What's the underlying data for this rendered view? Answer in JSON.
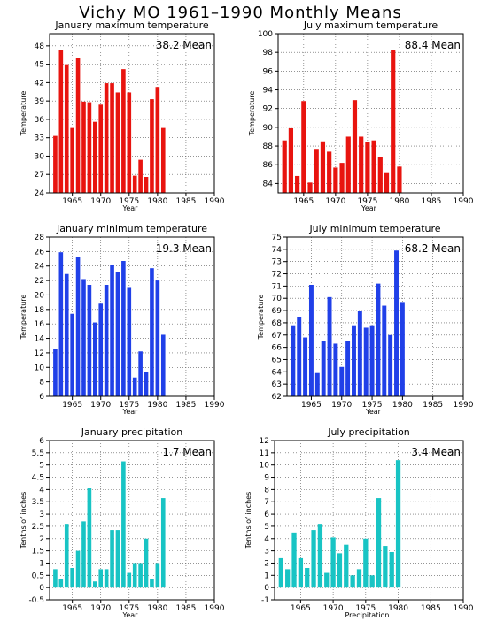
{
  "page_title": "Vichy MO  1961–1990 Monthly Means",
  "chart_data": [
    {
      "id": "jan-max",
      "type": "bar",
      "title": "January maximum temperature",
      "xlabel": "Year",
      "ylabel": "Temperature",
      "mean_label": "38.2 Mean",
      "bar_color": "#e8140f",
      "xlim": [
        1961,
        1990
      ],
      "ylim": [
        24,
        50
      ],
      "xticks": [
        1965,
        1970,
        1975,
        1980,
        1985,
        1990
      ],
      "yticks": [
        24,
        27,
        30,
        33,
        36,
        39,
        42,
        45,
        48
      ],
      "x": [
        1962,
        1963,
        1964,
        1965,
        1966,
        1967,
        1968,
        1969,
        1970,
        1971,
        1972,
        1973,
        1974,
        1975,
        1976,
        1977,
        1978,
        1979,
        1980,
        1981
      ],
      "values": [
        33.3,
        47.4,
        45.0,
        34.6,
        46.1,
        38.9,
        38.8,
        35.6,
        38.4,
        41.9,
        41.9,
        40.4,
        44.2,
        40.4,
        26.8,
        29.4,
        26.6,
        39.3,
        41.3,
        34.6
      ]
    },
    {
      "id": "jul-max",
      "type": "bar",
      "title": "July maximum temperature",
      "xlabel": "Year",
      "ylabel": "Temperature",
      "mean_label": "88.4 Mean",
      "bar_color": "#e8140f",
      "xlim": [
        1961,
        1990
      ],
      "ylim": [
        83,
        100
      ],
      "xticks": [
        1965,
        1970,
        1975,
        1980,
        1985,
        1990
      ],
      "yticks": [
        84,
        86,
        88,
        90,
        92,
        94,
        96,
        98,
        100
      ],
      "x": [
        1962,
        1963,
        1964,
        1965,
        1966,
        1967,
        1968,
        1969,
        1970,
        1971,
        1972,
        1973,
        1974,
        1975,
        1976,
        1977,
        1978,
        1979,
        1980
      ],
      "values": [
        88.6,
        89.9,
        84.8,
        92.8,
        84.1,
        87.7,
        88.5,
        87.4,
        85.7,
        86.2,
        89.0,
        92.9,
        89.0,
        88.4,
        88.6,
        86.8,
        85.2,
        98.3,
        85.8
      ]
    },
    {
      "id": "jan-min",
      "type": "bar",
      "title": "January minimum temperature",
      "xlabel": "Year",
      "ylabel": "Temperature",
      "mean_label": "19.3 Mean",
      "bar_color": "#2040e8",
      "xlim": [
        1961,
        1990
      ],
      "ylim": [
        6,
        28
      ],
      "xticks": [
        1965,
        1970,
        1975,
        1980,
        1985,
        1990
      ],
      "yticks": [
        6,
        8,
        10,
        12,
        14,
        16,
        18,
        20,
        22,
        24,
        26,
        28
      ],
      "x": [
        1962,
        1963,
        1964,
        1965,
        1966,
        1967,
        1968,
        1969,
        1970,
        1971,
        1972,
        1973,
        1974,
        1975,
        1976,
        1977,
        1978,
        1979,
        1980,
        1981
      ],
      "values": [
        12.5,
        25.9,
        22.9,
        17.4,
        25.3,
        22.2,
        21.4,
        16.2,
        18.8,
        21.4,
        24.1,
        23.2,
        24.7,
        21.1,
        8.6,
        12.2,
        9.3,
        23.7,
        22.0,
        14.5
      ]
    },
    {
      "id": "jul-min",
      "type": "bar",
      "title": "July minimum temperature",
      "xlabel": "Year",
      "ylabel": "Temperature",
      "mean_label": "68.2 Mean",
      "bar_color": "#2040e8",
      "xlim": [
        1961,
        1990
      ],
      "ylim": [
        62,
        75
      ],
      "xticks": [
        1965,
        1970,
        1975,
        1980,
        1985,
        1990
      ],
      "yticks": [
        62,
        63,
        64,
        65,
        66,
        67,
        68,
        69,
        70,
        71,
        72,
        73,
        74,
        75
      ],
      "x": [
        1962,
        1963,
        1964,
        1965,
        1966,
        1967,
        1968,
        1969,
        1970,
        1971,
        1972,
        1973,
        1974,
        1975,
        1976,
        1977,
        1978,
        1979,
        1980
      ],
      "values": [
        67.8,
        68.5,
        66.8,
        71.1,
        63.9,
        66.5,
        70.1,
        66.3,
        64.4,
        66.5,
        67.8,
        69.0,
        67.6,
        67.8,
        71.2,
        69.4,
        67.0,
        73.9,
        69.7
      ]
    },
    {
      "id": "jan-precip",
      "type": "bar",
      "title": "January precipitation",
      "xlabel": "Year",
      "ylabel": "Tenths of inches",
      "mean_label": "1.7 Mean",
      "bar_color": "#18c4c4",
      "xlim": [
        1961,
        1990
      ],
      "ylim": [
        -0.5,
        6
      ],
      "xticks": [
        1965,
        1970,
        1975,
        1980,
        1985,
        1990
      ],
      "yticks": [
        -0.5,
        0,
        0.5,
        1,
        1.5,
        2,
        2.5,
        3,
        3.5,
        4,
        4.5,
        5,
        5.5,
        6
      ],
      "x": [
        1962,
        1963,
        1964,
        1965,
        1966,
        1967,
        1968,
        1969,
        1970,
        1971,
        1972,
        1973,
        1974,
        1975,
        1976,
        1977,
        1978,
        1979,
        1980,
        1981,
        1982
      ],
      "values": [
        0.75,
        0.35,
        2.6,
        0.8,
        1.5,
        2.7,
        4.05,
        0.25,
        0.75,
        0.75,
        2.35,
        2.35,
        5.15,
        0.6,
        1.0,
        1.0,
        2.0,
        0.35,
        1.0,
        3.65,
        0
      ]
    },
    {
      "id": "jul-precip",
      "type": "bar",
      "title": "July precipitation",
      "xlabel": "Precipitation",
      "ylabel": "Tenths of inches",
      "mean_label": "3.4 Mean",
      "bar_color": "#18c4c4",
      "xlim": [
        1961,
        1990
      ],
      "ylim": [
        -1,
        12
      ],
      "xticks": [
        1965,
        1970,
        1975,
        1980,
        1985,
        1990
      ],
      "yticks": [
        -1,
        0,
        1,
        2,
        3,
        4,
        5,
        6,
        7,
        8,
        9,
        10,
        11,
        12
      ],
      "x": [
        1962,
        1963,
        1964,
        1965,
        1966,
        1967,
        1968,
        1969,
        1970,
        1971,
        1972,
        1973,
        1974,
        1975,
        1976,
        1977,
        1978,
        1979,
        1980
      ],
      "values": [
        2.4,
        1.5,
        4.5,
        2.4,
        1.6,
        4.7,
        5.2,
        1.2,
        4.1,
        2.8,
        3.5,
        1.0,
        1.5,
        4.0,
        1.0,
        7.3,
        3.4,
        2.9,
        10.4
      ]
    }
  ]
}
